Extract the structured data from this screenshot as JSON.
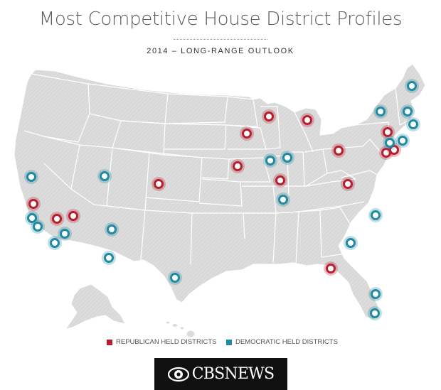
{
  "title": "Most Competitive House District Profiles",
  "subtitle": "2014 – LONG-RANGE OUTLOOK",
  "legend": {
    "republican": {
      "label": "REPUBLICAN HELD DISTRICTS",
      "color": "#b81f2e"
    },
    "democratic": {
      "label": "DEMOCRATIC HELD DISTRICTS",
      "color": "#1f8aa0"
    }
  },
  "logo_text": "CBSNEWS",
  "colors": {
    "land": "#dcdcdc",
    "border": "#ffffff",
    "republican": "#b81f2e",
    "democratic": "#1f8aa0"
  }
}
